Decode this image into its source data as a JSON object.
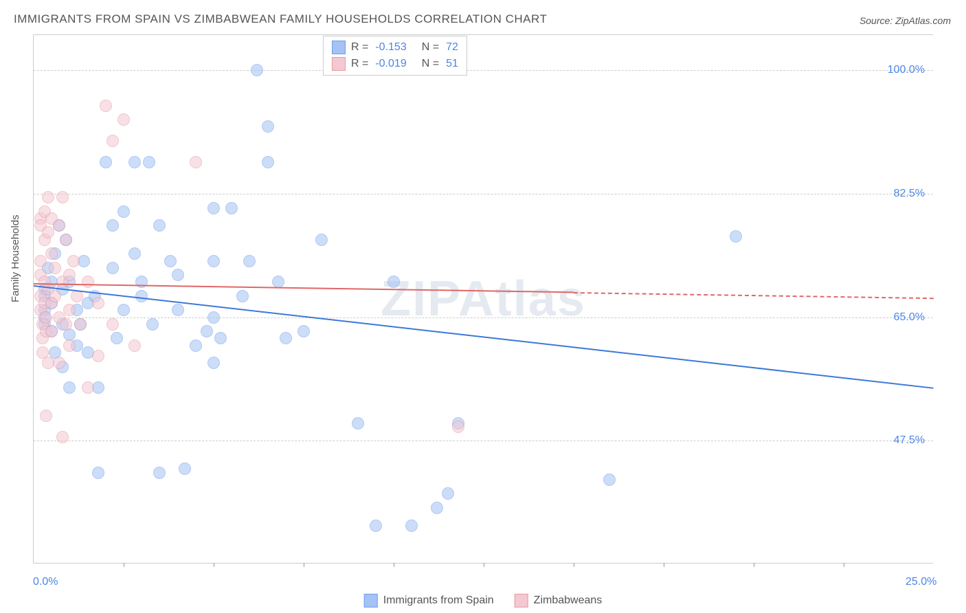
{
  "title": "IMMIGRANTS FROM SPAIN VS ZIMBABWEAN FAMILY HOUSEHOLDS CORRELATION CHART",
  "source": "Source: ZipAtlas.com",
  "ylabel": "Family Households",
  "watermark": "ZIPAtlas",
  "chart": {
    "type": "scatter",
    "background_color": "#ffffff",
    "grid_color": "#cccccc",
    "xlim": [
      0.0,
      25.0
    ],
    "ylim": [
      30.0,
      105.0
    ],
    "xticks": [
      0.0,
      25.0
    ],
    "xtick_labels": [
      "0.0%",
      "25.0%"
    ],
    "xtick_inner_positions": [
      2.5,
      5.0,
      7.5,
      10.0,
      12.5,
      15.0,
      17.5,
      20.0,
      22.5
    ],
    "yticks": [
      47.5,
      65.0,
      82.5,
      100.0
    ],
    "ytick_labels": [
      "47.5%",
      "65.0%",
      "82.5%",
      "100.0%"
    ],
    "marker_radius": 9,
    "marker_opacity": 0.55,
    "series": [
      {
        "name": "Immigrants from Spain",
        "color_fill": "#a4c2f4",
        "color_stroke": "#6d9eeb",
        "R": "-0.153",
        "N": "72",
        "trend": {
          "y_at_xmin": 69.5,
          "y_at_xmax": 55.0,
          "solid_until_x": 25.0,
          "color": "#3c78d8"
        },
        "points": [
          [
            0.3,
            69.0
          ],
          [
            0.3,
            68.0
          ],
          [
            0.3,
            66.0
          ],
          [
            0.3,
            65.0
          ],
          [
            0.3,
            64.0
          ],
          [
            0.4,
            72.0
          ],
          [
            0.5,
            70.0
          ],
          [
            0.5,
            67.0
          ],
          [
            0.5,
            63.0
          ],
          [
            0.6,
            74.0
          ],
          [
            0.6,
            60.0
          ],
          [
            0.7,
            78.0
          ],
          [
            0.8,
            69.0
          ],
          [
            0.8,
            64.0
          ],
          [
            0.8,
            58.0
          ],
          [
            0.9,
            76.0
          ],
          [
            1.0,
            62.5
          ],
          [
            1.0,
            55.0
          ],
          [
            1.0,
            70.0
          ],
          [
            1.2,
            66.0
          ],
          [
            1.2,
            61.0
          ],
          [
            1.3,
            64.0
          ],
          [
            1.4,
            73.0
          ],
          [
            1.5,
            67.0
          ],
          [
            1.5,
            60.0
          ],
          [
            1.7,
            68.0
          ],
          [
            1.8,
            43.0
          ],
          [
            1.8,
            55.0
          ],
          [
            2.0,
            87.0
          ],
          [
            2.2,
            78.0
          ],
          [
            2.2,
            72.0
          ],
          [
            2.3,
            62.0
          ],
          [
            2.5,
            80.0
          ],
          [
            2.5,
            66.0
          ],
          [
            2.8,
            87.0
          ],
          [
            2.8,
            74.0
          ],
          [
            3.0,
            68.0
          ],
          [
            3.0,
            70.0
          ],
          [
            3.2,
            87.0
          ],
          [
            3.3,
            64.0
          ],
          [
            3.5,
            78.0
          ],
          [
            3.5,
            43.0
          ],
          [
            3.8,
            73.0
          ],
          [
            4.0,
            66.0
          ],
          [
            4.0,
            71.0
          ],
          [
            4.2,
            43.5
          ],
          [
            4.5,
            61.0
          ],
          [
            4.8,
            63.0
          ],
          [
            5.0,
            80.5
          ],
          [
            5.0,
            73.0
          ],
          [
            5.0,
            65.0
          ],
          [
            5.0,
            58.5
          ],
          [
            5.2,
            62.0
          ],
          [
            5.5,
            80.5
          ],
          [
            5.8,
            68.0
          ],
          [
            6.0,
            73.0
          ],
          [
            6.2,
            100.0
          ],
          [
            6.5,
            92.0
          ],
          [
            6.5,
            87.0
          ],
          [
            6.8,
            70.0
          ],
          [
            7.0,
            62.0
          ],
          [
            7.5,
            63.0
          ],
          [
            8.0,
            76.0
          ],
          [
            9.0,
            50.0
          ],
          [
            9.5,
            35.5
          ],
          [
            10.0,
            70.0
          ],
          [
            10.5,
            35.5
          ],
          [
            11.5,
            40.0
          ],
          [
            11.8,
            50.0
          ],
          [
            16.0,
            42.0
          ],
          [
            19.5,
            76.5
          ],
          [
            11.2,
            38.0
          ]
        ]
      },
      {
        "name": "Zimbabweans",
        "color_fill": "#f4c7d4",
        "color_stroke": "#ea9999",
        "R": "-0.019",
        "N": "51",
        "trend": {
          "y_at_xmin": 69.8,
          "y_at_xmax": 67.8,
          "solid_until_x": 15.0,
          "color": "#e06666"
        },
        "points": [
          [
            0.2,
            79.0
          ],
          [
            0.2,
            78.0
          ],
          [
            0.2,
            73.0
          ],
          [
            0.2,
            71.0
          ],
          [
            0.2,
            68.0
          ],
          [
            0.2,
            66.0
          ],
          [
            0.25,
            64.0
          ],
          [
            0.25,
            62.0
          ],
          [
            0.25,
            60.0
          ],
          [
            0.3,
            80.0
          ],
          [
            0.3,
            76.0
          ],
          [
            0.3,
            70.0
          ],
          [
            0.3,
            67.0
          ],
          [
            0.35,
            65.0
          ],
          [
            0.35,
            63.0
          ],
          [
            0.4,
            82.0
          ],
          [
            0.4,
            77.0
          ],
          [
            0.4,
            69.0
          ],
          [
            0.4,
            58.5
          ],
          [
            0.5,
            79.0
          ],
          [
            0.5,
            74.0
          ],
          [
            0.5,
            67.0
          ],
          [
            0.5,
            63.0
          ],
          [
            0.6,
            72.0
          ],
          [
            0.6,
            68.0
          ],
          [
            0.7,
            78.0
          ],
          [
            0.7,
            65.0
          ],
          [
            0.7,
            58.5
          ],
          [
            0.8,
            82.0
          ],
          [
            0.8,
            70.0
          ],
          [
            0.8,
            48.0
          ],
          [
            0.9,
            76.0
          ],
          [
            0.9,
            64.0
          ],
          [
            1.0,
            71.0
          ],
          [
            1.0,
            66.0
          ],
          [
            1.0,
            61.0
          ],
          [
            1.1,
            73.0
          ],
          [
            1.2,
            68.0
          ],
          [
            1.3,
            64.0
          ],
          [
            1.5,
            55.0
          ],
          [
            1.5,
            70.0
          ],
          [
            1.8,
            67.0
          ],
          [
            1.8,
            59.5
          ],
          [
            2.0,
            95.0
          ],
          [
            2.2,
            90.0
          ],
          [
            2.2,
            64.0
          ],
          [
            2.5,
            93.0
          ],
          [
            2.8,
            61.0
          ],
          [
            4.5,
            87.0
          ],
          [
            11.8,
            49.5
          ],
          [
            0.35,
            51.0
          ]
        ]
      }
    ]
  },
  "legend_bottom": [
    {
      "label": "Immigrants from Spain",
      "fill": "#a4c2f4",
      "stroke": "#6d9eeb"
    },
    {
      "label": "Zimbabweans",
      "fill": "#f4c7d4",
      "stroke": "#ea9999"
    }
  ]
}
